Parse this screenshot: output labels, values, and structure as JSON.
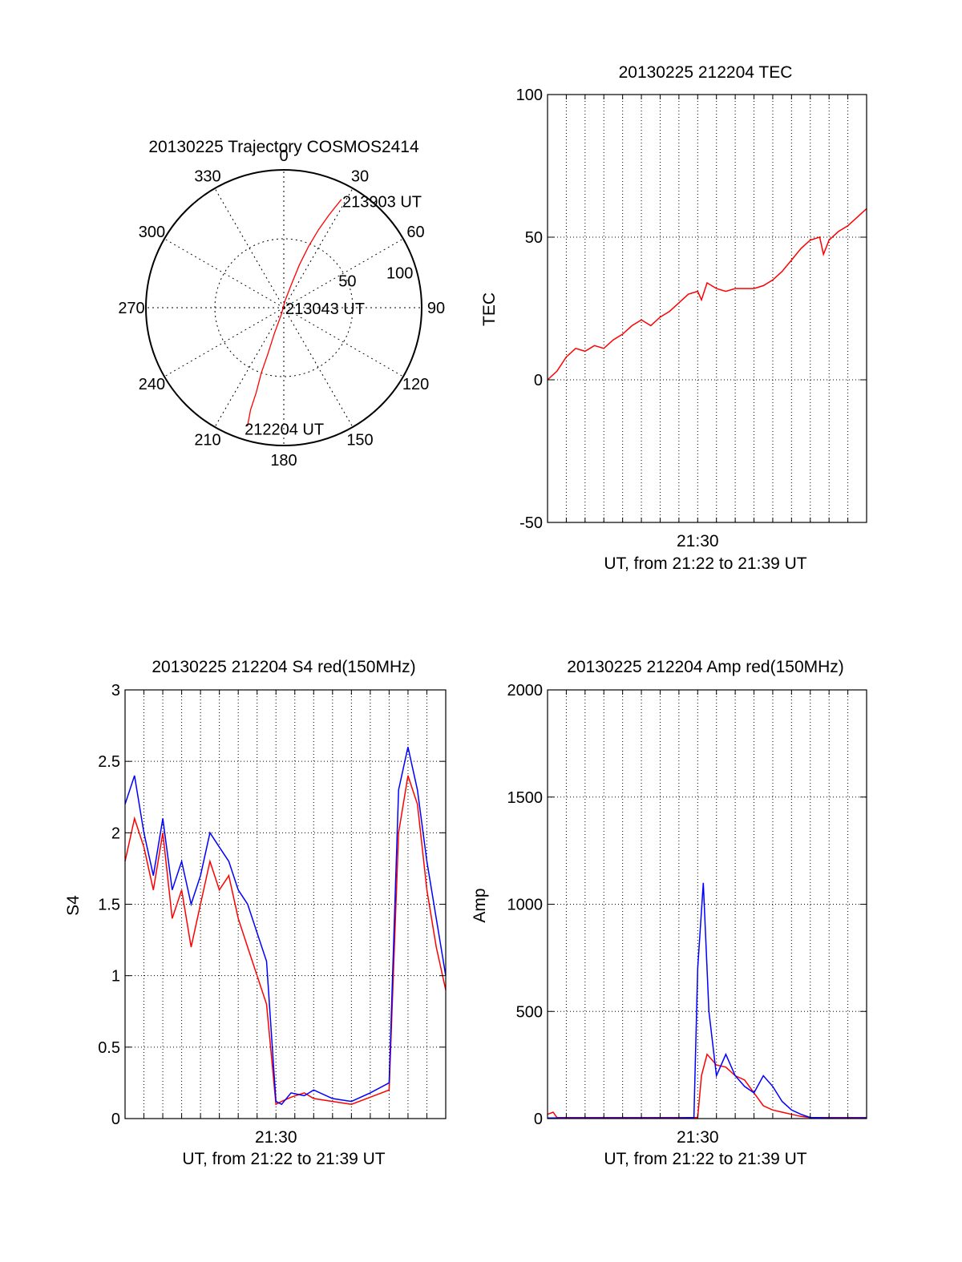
{
  "colors": {
    "red": "#ff0000",
    "blue": "#0000ff",
    "axis": "#000000"
  },
  "chart_data": [
    {
      "id": "trajectory",
      "type": "polar",
      "title": "20130225 Trajectory COSMOS2414",
      "angle_labels": [
        "0",
        "30",
        "60",
        "90",
        "120",
        "150",
        "180",
        "210",
        "240",
        "270",
        "300",
        "330"
      ],
      "radius_labels": [
        "50",
        "100"
      ],
      "radius_max": 100,
      "annotations": [
        {
          "text": "213903 UT",
          "az": 28,
          "zen": 88
        },
        {
          "text": "213043 UT",
          "az": 0,
          "zen": 0
        },
        {
          "text": "212204 UT",
          "az": 198,
          "zen": 92
        }
      ],
      "series": [
        {
          "color": "red",
          "points": [
            [
              28,
              89
            ],
            [
              26,
              75
            ],
            [
              24,
              62
            ],
            [
              22,
              48
            ],
            [
              20,
              33
            ],
            [
              18,
              18
            ],
            [
              10,
              5
            ],
            [
              200,
              5
            ],
            [
              200,
              20
            ],
            [
              199,
              35
            ],
            [
              199,
              50
            ],
            [
              198,
              65
            ],
            [
              198,
              78
            ],
            [
              197,
              90
            ]
          ]
        }
      ]
    },
    {
      "id": "tec",
      "type": "line",
      "title": "20130225 212204 TEC",
      "ylabel": "TEC",
      "xlabel": "UT, from 21:22 to 21:39 UT",
      "x_tick_labels": [
        "21:30"
      ],
      "ylim": [
        -50,
        100
      ],
      "y_ticks": [
        -50,
        0,
        50,
        100
      ],
      "y_tick_labels": [
        "-50",
        "0",
        "50",
        "100"
      ],
      "grid": true,
      "series": [
        {
          "color": "red",
          "x": [
            0,
            0.5,
            1,
            1.5,
            2,
            2.5,
            3,
            3.5,
            4,
            4.5,
            5,
            5.5,
            6,
            6.5,
            7,
            7.5,
            8,
            8.2,
            8.5,
            9,
            9.5,
            10,
            10.5,
            11,
            11.5,
            12,
            12.5,
            13,
            13.5,
            14,
            14.5,
            14.7,
            15,
            15.5,
            16,
            16.5,
            17
          ],
          "y": [
            0,
            3,
            8,
            11,
            10,
            12,
            11,
            14,
            16,
            19,
            21,
            19,
            22,
            24,
            27,
            30,
            31,
            28,
            34,
            32,
            31,
            32,
            32,
            32,
            33,
            35,
            38,
            42,
            46,
            49,
            50,
            44,
            49,
            52,
            54,
            57,
            60
          ]
        }
      ]
    },
    {
      "id": "s4",
      "type": "line",
      "title": "20130225 212204 S4 red(150MHz)",
      "ylabel": "S4",
      "xlabel": "UT, from 21:22 to 21:39 UT",
      "x_tick_labels": [
        "21:30"
      ],
      "ylim": [
        0,
        3
      ],
      "y_ticks": [
        0,
        0.5,
        1,
        1.5,
        2,
        2.5,
        3
      ],
      "y_tick_labels": [
        "0",
        "0.5",
        "1",
        "1.5",
        "2",
        "2.5",
        "3"
      ],
      "grid": true,
      "series": [
        {
          "color": "red",
          "x": [
            0,
            0.5,
            1,
            1.5,
            2,
            2.5,
            3,
            3.5,
            4,
            4.5,
            5,
            5.5,
            6,
            6.5,
            7,
            7.5,
            8,
            8.3,
            8.8,
            9.5,
            10,
            11,
            12,
            13,
            14,
            14.5,
            15,
            15.5,
            16,
            16.5,
            17
          ],
          "y": [
            1.8,
            2.1,
            1.9,
            1.6,
            2.0,
            1.4,
            1.6,
            1.2,
            1.5,
            1.8,
            1.6,
            1.7,
            1.4,
            1.2,
            1.0,
            0.8,
            0.1,
            0.12,
            0.15,
            0.18,
            0.14,
            0.12,
            0.1,
            0.15,
            0.2,
            2.0,
            2.4,
            2.2,
            1.6,
            1.2,
            0.9
          ]
        },
        {
          "color": "blue",
          "x": [
            0,
            0.5,
            1,
            1.5,
            2,
            2.5,
            3,
            3.5,
            4,
            4.5,
            5,
            5.5,
            6,
            6.5,
            7,
            7.5,
            8,
            8.3,
            8.8,
            9.5,
            10,
            11,
            12,
            13,
            14,
            14.5,
            15,
            15.5,
            16,
            16.5,
            17
          ],
          "y": [
            2.2,
            2.4,
            2.0,
            1.7,
            2.1,
            1.6,
            1.8,
            1.5,
            1.7,
            2.0,
            1.9,
            1.8,
            1.6,
            1.5,
            1.3,
            1.1,
            0.12,
            0.1,
            0.18,
            0.16,
            0.2,
            0.14,
            0.12,
            0.18,
            0.25,
            2.3,
            2.6,
            2.3,
            1.8,
            1.4,
            1.0
          ]
        }
      ]
    },
    {
      "id": "amp",
      "type": "line",
      "title": "20130225 212204 Amp red(150MHz)",
      "ylabel": "Amp",
      "xlabel": "UT, from 21:22 to 21:39 UT",
      "x_tick_labels": [
        "21:30"
      ],
      "ylim": [
        0,
        2000
      ],
      "y_ticks": [
        0,
        500,
        1000,
        1500,
        2000
      ],
      "y_tick_labels": [
        "0",
        "500",
        "1000",
        "1500",
        "2000"
      ],
      "grid": true,
      "series": [
        {
          "color": "red",
          "x": [
            0,
            0.3,
            0.5,
            1,
            2,
            3,
            4,
            5,
            6,
            7,
            8,
            8.2,
            8.5,
            9,
            9.5,
            10,
            10.5,
            11,
            11.5,
            12,
            12.5,
            13,
            13.5,
            14,
            15,
            16,
            17
          ],
          "y": [
            20,
            30,
            5,
            5,
            5,
            5,
            5,
            5,
            5,
            5,
            5,
            200,
            300,
            250,
            240,
            200,
            180,
            120,
            60,
            40,
            30,
            20,
            10,
            5,
            5,
            5,
            5
          ]
        },
        {
          "color": "blue",
          "x": [
            0,
            0.5,
            1,
            2,
            3,
            4,
            5,
            6,
            7,
            7.8,
            8.0,
            8.3,
            8.6,
            9.0,
            9.5,
            10,
            10.5,
            11,
            11.5,
            12,
            12.5,
            13,
            13.5,
            14,
            15,
            16,
            17
          ],
          "y": [
            3,
            3,
            3,
            3,
            3,
            3,
            3,
            3,
            3,
            5,
            700,
            1100,
            500,
            200,
            300,
            200,
            150,
            120,
            200,
            150,
            80,
            40,
            20,
            5,
            3,
            3,
            3
          ]
        }
      ]
    }
  ]
}
